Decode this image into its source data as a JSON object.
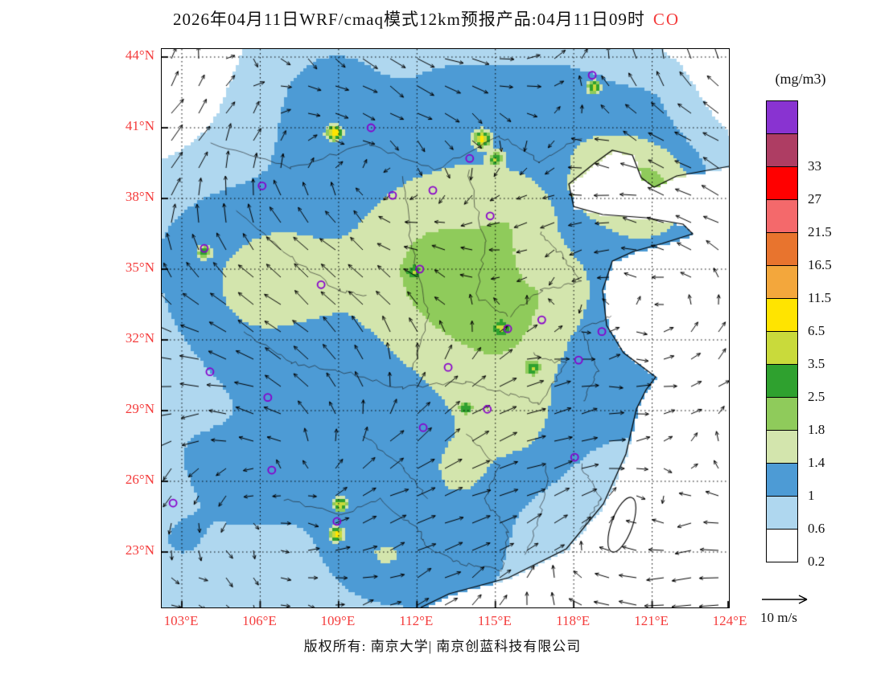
{
  "title": {
    "text": "2026年04月11日WRF/cmaq模式12km预报产品:04月11日09时",
    "species": "CO"
  },
  "colors": {
    "axis_label": "#f43b3b",
    "species_label": "#f43b3b",
    "marker": "#8800CC",
    "text": "#111111"
  },
  "map": {
    "lat_ticks": [
      "44°N",
      "41°N",
      "38°N",
      "35°N",
      "32°N",
      "29°N",
      "26°N",
      "23°N"
    ],
    "lon_ticks": [
      "103°E",
      "106°E",
      "109°E",
      "112°E",
      "115°E",
      "118°E",
      "121°E",
      "124°E"
    ],
    "markers": [
      [
        0.759,
        0.047
      ],
      [
        0.369,
        0.141
      ],
      [
        0.543,
        0.196
      ],
      [
        0.177,
        0.245
      ],
      [
        0.407,
        0.262
      ],
      [
        0.478,
        0.253
      ],
      [
        0.579,
        0.299
      ],
      [
        0.075,
        0.357
      ],
      [
        0.455,
        0.394
      ],
      [
        0.281,
        0.422
      ],
      [
        0.67,
        0.485
      ],
      [
        0.61,
        0.501
      ],
      [
        0.776,
        0.506
      ],
      [
        0.735,
        0.557
      ],
      [
        0.505,
        0.57
      ],
      [
        0.085,
        0.578
      ],
      [
        0.187,
        0.624
      ],
      [
        0.574,
        0.645
      ],
      [
        0.461,
        0.678
      ],
      [
        0.728,
        0.731
      ],
      [
        0.194,
        0.754
      ],
      [
        0.02,
        0.813
      ],
      [
        0.309,
        0.846
      ]
    ],
    "hotspots": [
      [
        0.562,
        0.158,
        3.5
      ],
      [
        0.586,
        0.194,
        1.6
      ],
      [
        0.759,
        0.065,
        2.2
      ],
      [
        0.301,
        0.147,
        4.0
      ],
      [
        0.312,
        0.813,
        2.8
      ],
      [
        0.305,
        0.866,
        3.2
      ],
      [
        0.652,
        0.568,
        1.5
      ],
      [
        0.596,
        0.497,
        1.4
      ],
      [
        0.533,
        0.64,
        1.3
      ],
      [
        0.071,
        0.36,
        1.3
      ],
      [
        0.441,
        0.397,
        1.2
      ]
    ]
  },
  "legend": {
    "unit": "(mg/m3)",
    "steps": [
      {
        "label": "",
        "color": "#8933D1"
      },
      {
        "label": "33",
        "color": "#AE3D63"
      },
      {
        "label": "27",
        "color": "#FF0000"
      },
      {
        "label": "21.5",
        "color": "#F4696B"
      },
      {
        "label": "16.5",
        "color": "#E8742E"
      },
      {
        "label": "11.5",
        "color": "#F3A73C"
      },
      {
        "label": "6.5",
        "color": "#FFE400"
      },
      {
        "label": "3.5",
        "color": "#C9DA3B"
      },
      {
        "label": "2.5",
        "color": "#2FA12F"
      },
      {
        "label": "1.8",
        "color": "#8FCB5B"
      },
      {
        "label": "1.4",
        "color": "#D3E5AD"
      },
      {
        "label": "1",
        "color": "#4D9BD5"
      },
      {
        "label": "0.6",
        "color": "#AFD7EF"
      },
      {
        "label": "0.2",
        "color": "#FFFFFF"
      }
    ],
    "thresholds": [
      0.2,
      0.6,
      1,
      1.4,
      1.8,
      2.5,
      3.5,
      6.5,
      11.5,
      16.5,
      21.5,
      27,
      33
    ]
  },
  "wind_scale": {
    "label": "10 m/s"
  },
  "footer": {
    "text": "版权所有: 南京大学| 南京创蓝科技有限公司"
  }
}
